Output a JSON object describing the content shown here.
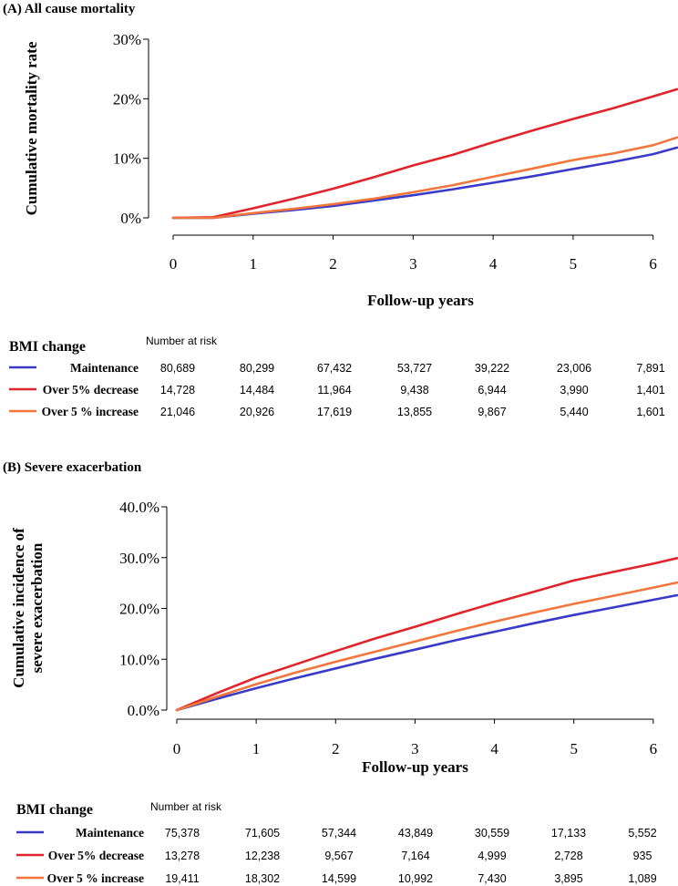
{
  "colors": {
    "Maintenance": "#3a3ac8",
    "Over 5% decrease": "#e0242b",
    "Over 5 % increase": "#f0763c"
  },
  "chart_data": [
    {
      "type": "line",
      "title": "(A) All cause mortality",
      "xlabel": "Follow-up years",
      "ylabel": "Cumulative mortality rate",
      "xlim": [
        0,
        6.3
      ],
      "ylim": [
        0,
        30
      ],
      "xticks": [
        "0",
        "1",
        "2",
        "3",
        "4",
        "5",
        "6"
      ],
      "yticks": [
        "0%",
        "10%",
        "20%",
        "30%"
      ],
      "x": [
        0,
        0.5,
        1,
        1.5,
        2,
        2.5,
        3,
        3.5,
        4,
        4.5,
        5,
        5.5,
        6,
        6.3
      ],
      "series": [
        {
          "name": "Maintenance",
          "values": [
            0,
            0,
            0.7,
            1.3,
            2.0,
            2.9,
            3.8,
            4.8,
            5.9,
            7.0,
            8.2,
            9.4,
            10.7,
            11.8
          ]
        },
        {
          "name": "Over 5% decrease",
          "values": [
            0,
            0.1,
            1.6,
            3.2,
            4.9,
            6.8,
            8.8,
            10.6,
            12.7,
            14.7,
            16.6,
            18.4,
            20.4,
            21.6
          ]
        },
        {
          "name": "Over 5 % increase",
          "values": [
            0,
            0,
            0.8,
            1.5,
            2.3,
            3.2,
            4.3,
            5.5,
            6.9,
            8.3,
            9.7,
            10.8,
            12.2,
            13.5
          ]
        }
      ],
      "risk_table": {
        "legend_title": "BMI change",
        "header": "Number at risk",
        "rows": [
          {
            "group": "Maintenance",
            "numbers": [
              "80,689",
              "80,299",
              "67,432",
              "53,727",
              "39,222",
              "23,006",
              "7,891"
            ]
          },
          {
            "group": "Over 5% decrease",
            "numbers": [
              "14,728",
              "14,484",
              "11,964",
              "9,438",
              "6,944",
              "3,990",
              "1,401"
            ]
          },
          {
            "group": "Over 5 % increase",
            "numbers": [
              "21,046",
              "20,926",
              "17,619",
              "13,855",
              "9,867",
              "5,440",
              "1,601"
            ]
          }
        ]
      }
    },
    {
      "type": "line",
      "title": "(B) Severe exacerbation",
      "xlabel": "Follow-up years",
      "ylabel_lines": [
        "Cumulative incidence of",
        "severe exacerbation"
      ],
      "xlim": [
        0,
        6.3
      ],
      "ylim": [
        0,
        40
      ],
      "xticks": [
        "0",
        "1",
        "2",
        "3",
        "4",
        "5",
        "6"
      ],
      "yticks": [
        "0.0%",
        "10.0%",
        "20.0%",
        "30.0%",
        "40.0%"
      ],
      "x": [
        0,
        0.5,
        1,
        1.5,
        2,
        2.5,
        3,
        3.5,
        4,
        4.5,
        5,
        5.5,
        6,
        6.3
      ],
      "series": [
        {
          "name": "Maintenance",
          "values": [
            0,
            2.2,
            4.3,
            6.3,
            8.2,
            10.1,
            11.9,
            13.7,
            15.4,
            17.1,
            18.7,
            20.2,
            21.7,
            22.6
          ]
        },
        {
          "name": "Over 5% decrease",
          "values": [
            0,
            3.3,
            6.4,
            9.0,
            11.6,
            14.1,
            16.4,
            18.8,
            21.1,
            23.3,
            25.5,
            27.2,
            28.8,
            29.9
          ]
        },
        {
          "name": "Over 5 % increase",
          "values": [
            0,
            2.6,
            5.1,
            7.4,
            9.5,
            11.5,
            13.5,
            15.5,
            17.4,
            19.2,
            20.9,
            22.5,
            24.1,
            25.1
          ]
        }
      ],
      "risk_table": {
        "legend_title": "BMI change",
        "header": "Number at risk",
        "rows": [
          {
            "group": "Maintenance",
            "numbers": [
              "75,378",
              "71,605",
              "57,344",
              "43,849",
              "30,559",
              "17,133",
              "5,552"
            ]
          },
          {
            "group": "Over 5% decrease",
            "numbers": [
              "13,278",
              "12,238",
              "9,567",
              "7,164",
              "4,999",
              "2,728",
              "935"
            ]
          },
          {
            "group": "Over 5 % increase",
            "numbers": [
              "19,411",
              "18,302",
              "14,599",
              "10,992",
              "7,430",
              "3,895",
              "1,089"
            ]
          }
        ]
      }
    }
  ]
}
